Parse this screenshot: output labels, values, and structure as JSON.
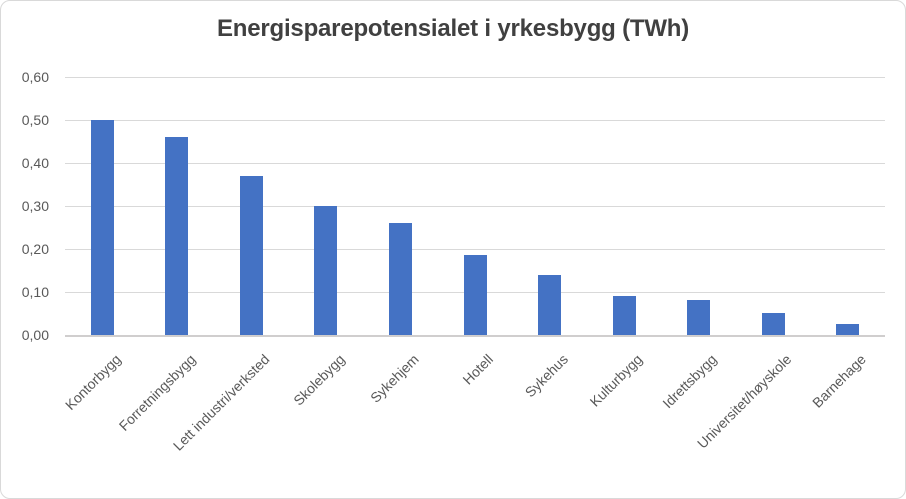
{
  "chart_data": {
    "type": "bar",
    "title": "Energisparepotensialet i yrkesbygg (TWh)",
    "categories": [
      "Kontorbygg",
      "Forretningsbygg",
      "Lett industri/verksted",
      "Skolebygg",
      "Sykehjem",
      "Hotell",
      "Sykehus",
      "Kulturbygg",
      "Idrettsbygg",
      "Universitet/høyskole",
      "Barnehage"
    ],
    "values": [
      0.5,
      0.46,
      0.37,
      0.3,
      0.26,
      0.185,
      0.14,
      0.09,
      0.082,
      0.052,
      0.026
    ],
    "xlabel": "",
    "ylabel": "",
    "ylim": [
      0,
      0.6
    ],
    "ytick_values": [
      0,
      0.1,
      0.2,
      0.3,
      0.4,
      0.5,
      0.6
    ],
    "ytick_labels": [
      "0,00",
      "0,10",
      "0,20",
      "0,30",
      "0,40",
      "0,50",
      "0,60"
    ],
    "grid": true,
    "legend": false,
    "bar_color": "#4472C4",
    "gridline_color": "#D9D9D9",
    "axis_line_color": "#D0CECE",
    "title_color": "#404040",
    "tick_label_color": "#595959",
    "decimal_separator": ","
  }
}
